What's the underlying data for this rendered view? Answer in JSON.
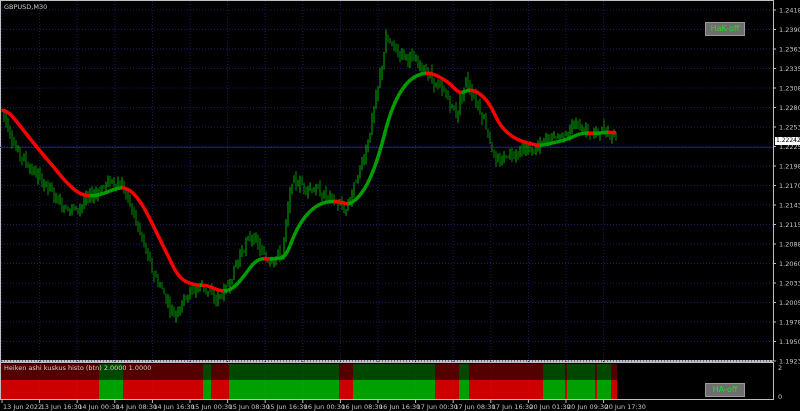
{
  "window": {
    "symbol_title": "GBPUSD,M30"
  },
  "buttons": {
    "main_toggle": "HaK-off",
    "sub_toggle": "HA-off"
  },
  "colors": {
    "bull": "#00c800",
    "bear": "#ff0000",
    "grid": "#1a1a66",
    "axis": "#c0c0c0",
    "current_price_line": "#1a1a9a"
  },
  "price_axis": {
    "ticks": [
      "1.24180",
      "1.23905",
      "1.23630",
      "1.23355",
      "1.23080",
      "1.22805",
      "1.22530",
      "1.22255",
      "1.21980",
      "1.21705",
      "1.21430",
      "1.21155",
      "1.20880",
      "1.20605",
      "1.20330",
      "1.20055",
      "1.19780",
      "1.19505",
      "1.19230"
    ],
    "current_price": "1.22242"
  },
  "time_axis": {
    "ticks": [
      "13 Jun 2022",
      "13 Jun 16:30",
      "14 Jun 00:30",
      "14 Jun 08:30",
      "14 Jun 16:30",
      "15 Jun 00:30",
      "15 Jun 08:30",
      "15 Jun 16:30",
      "16 Jun 00:30",
      "16 Jun 08:30",
      "16 Jun 16:30",
      "17 Jun 00:30",
      "17 Jun 08:30",
      "17 Jun 16:30",
      "20 Jun 01:30",
      "20 Jun 09:30",
      "20 Jun 17:30"
    ]
  },
  "price_path": [
    {
      "bar": 0,
      "price": 1.2277
    },
    {
      "bar": 7,
      "price": 1.2221
    },
    {
      "bar": 15,
      "price": 1.2192
    },
    {
      "bar": 22,
      "price": 1.2171
    },
    {
      "bar": 30,
      "price": 1.2143
    },
    {
      "bar": 37,
      "price": 1.2136
    },
    {
      "bar": 45,
      "price": 1.2157
    },
    {
      "bar": 55,
      "price": 1.2178
    },
    {
      "bar": 60,
      "price": 1.2171
    },
    {
      "bar": 65,
      "price": 1.2136
    },
    {
      "bar": 70,
      "price": 1.2094
    },
    {
      "bar": 75,
      "price": 1.2051
    },
    {
      "bar": 80,
      "price": 1.2023
    },
    {
      "bar": 86,
      "price": 1.1988
    },
    {
      "bar": 92,
      "price": 1.2016
    },
    {
      "bar": 100,
      "price": 1.203
    },
    {
      "bar": 107,
      "price": 1.2009
    },
    {
      "bar": 112,
      "price": 1.2023
    },
    {
      "bar": 120,
      "price": 1.208
    },
    {
      "bar": 125,
      "price": 1.2101
    },
    {
      "bar": 132,
      "price": 1.2065
    },
    {
      "bar": 140,
      "price": 1.2073
    },
    {
      "bar": 145,
      "price": 1.2178
    },
    {
      "bar": 150,
      "price": 1.2171
    },
    {
      "bar": 157,
      "price": 1.2164
    },
    {
      "bar": 165,
      "price": 1.215
    },
    {
      "bar": 172,
      "price": 1.2136
    },
    {
      "bar": 177,
      "price": 1.2178
    },
    {
      "bar": 182,
      "price": 1.2221
    },
    {
      "bar": 187,
      "price": 1.2291
    },
    {
      "bar": 192,
      "price": 1.2376
    },
    {
      "bar": 197,
      "price": 1.2362
    },
    {
      "bar": 205,
      "price": 1.2348
    },
    {
      "bar": 212,
      "price": 1.2333
    },
    {
      "bar": 217,
      "price": 1.2312
    },
    {
      "bar": 222,
      "price": 1.2298
    },
    {
      "bar": 227,
      "price": 1.227
    },
    {
      "bar": 232,
      "price": 1.2319
    },
    {
      "bar": 237,
      "price": 1.2291
    },
    {
      "bar": 242,
      "price": 1.2256
    },
    {
      "bar": 247,
      "price": 1.2199
    },
    {
      "bar": 252,
      "price": 1.2214
    },
    {
      "bar": 260,
      "price": 1.2221
    },
    {
      "bar": 267,
      "price": 1.2221
    },
    {
      "bar": 272,
      "price": 1.2235
    },
    {
      "bar": 280,
      "price": 1.2242
    },
    {
      "bar": 287,
      "price": 1.2256
    },
    {
      "bar": 295,
      "price": 1.2242
    },
    {
      "bar": 300,
      "price": 1.2249
    },
    {
      "bar": 307,
      "price": 1.2242
    }
  ],
  "histogram_segments": [
    {
      "from": 0,
      "to": 49,
      "trend": "bear"
    },
    {
      "from": 49,
      "to": 61,
      "trend": "bull"
    },
    {
      "from": 61,
      "to": 101,
      "trend": "bear"
    },
    {
      "from": 101,
      "to": 105,
      "trend": "bull"
    },
    {
      "from": 105,
      "to": 114,
      "trend": "bear"
    },
    {
      "from": 114,
      "to": 169,
      "trend": "bull"
    },
    {
      "from": 169,
      "to": 176,
      "trend": "bear"
    },
    {
      "from": 176,
      "to": 217,
      "trend": "bull"
    },
    {
      "from": 217,
      "to": 229,
      "trend": "bear"
    },
    {
      "from": 229,
      "to": 234,
      "trend": "bull"
    },
    {
      "from": 234,
      "to": 271,
      "trend": "bear"
    },
    {
      "from": 271,
      "to": 282,
      "trend": "bull"
    },
    {
      "from": 282,
      "to": 283,
      "trend": "bear"
    },
    {
      "from": 283,
      "to": 297,
      "trend": "bull"
    },
    {
      "from": 297,
      "to": 298,
      "trend": "bear"
    },
    {
      "from": 298,
      "to": 305,
      "trend": "bull"
    },
    {
      "from": 305,
      "to": 308,
      "trend": "bear"
    }
  ],
  "indicator": {
    "label": "Heiken ashi kuskus histo (btn) 2.0000 1.0000",
    "scale_max": "2",
    "scale_min": "0"
  }
}
